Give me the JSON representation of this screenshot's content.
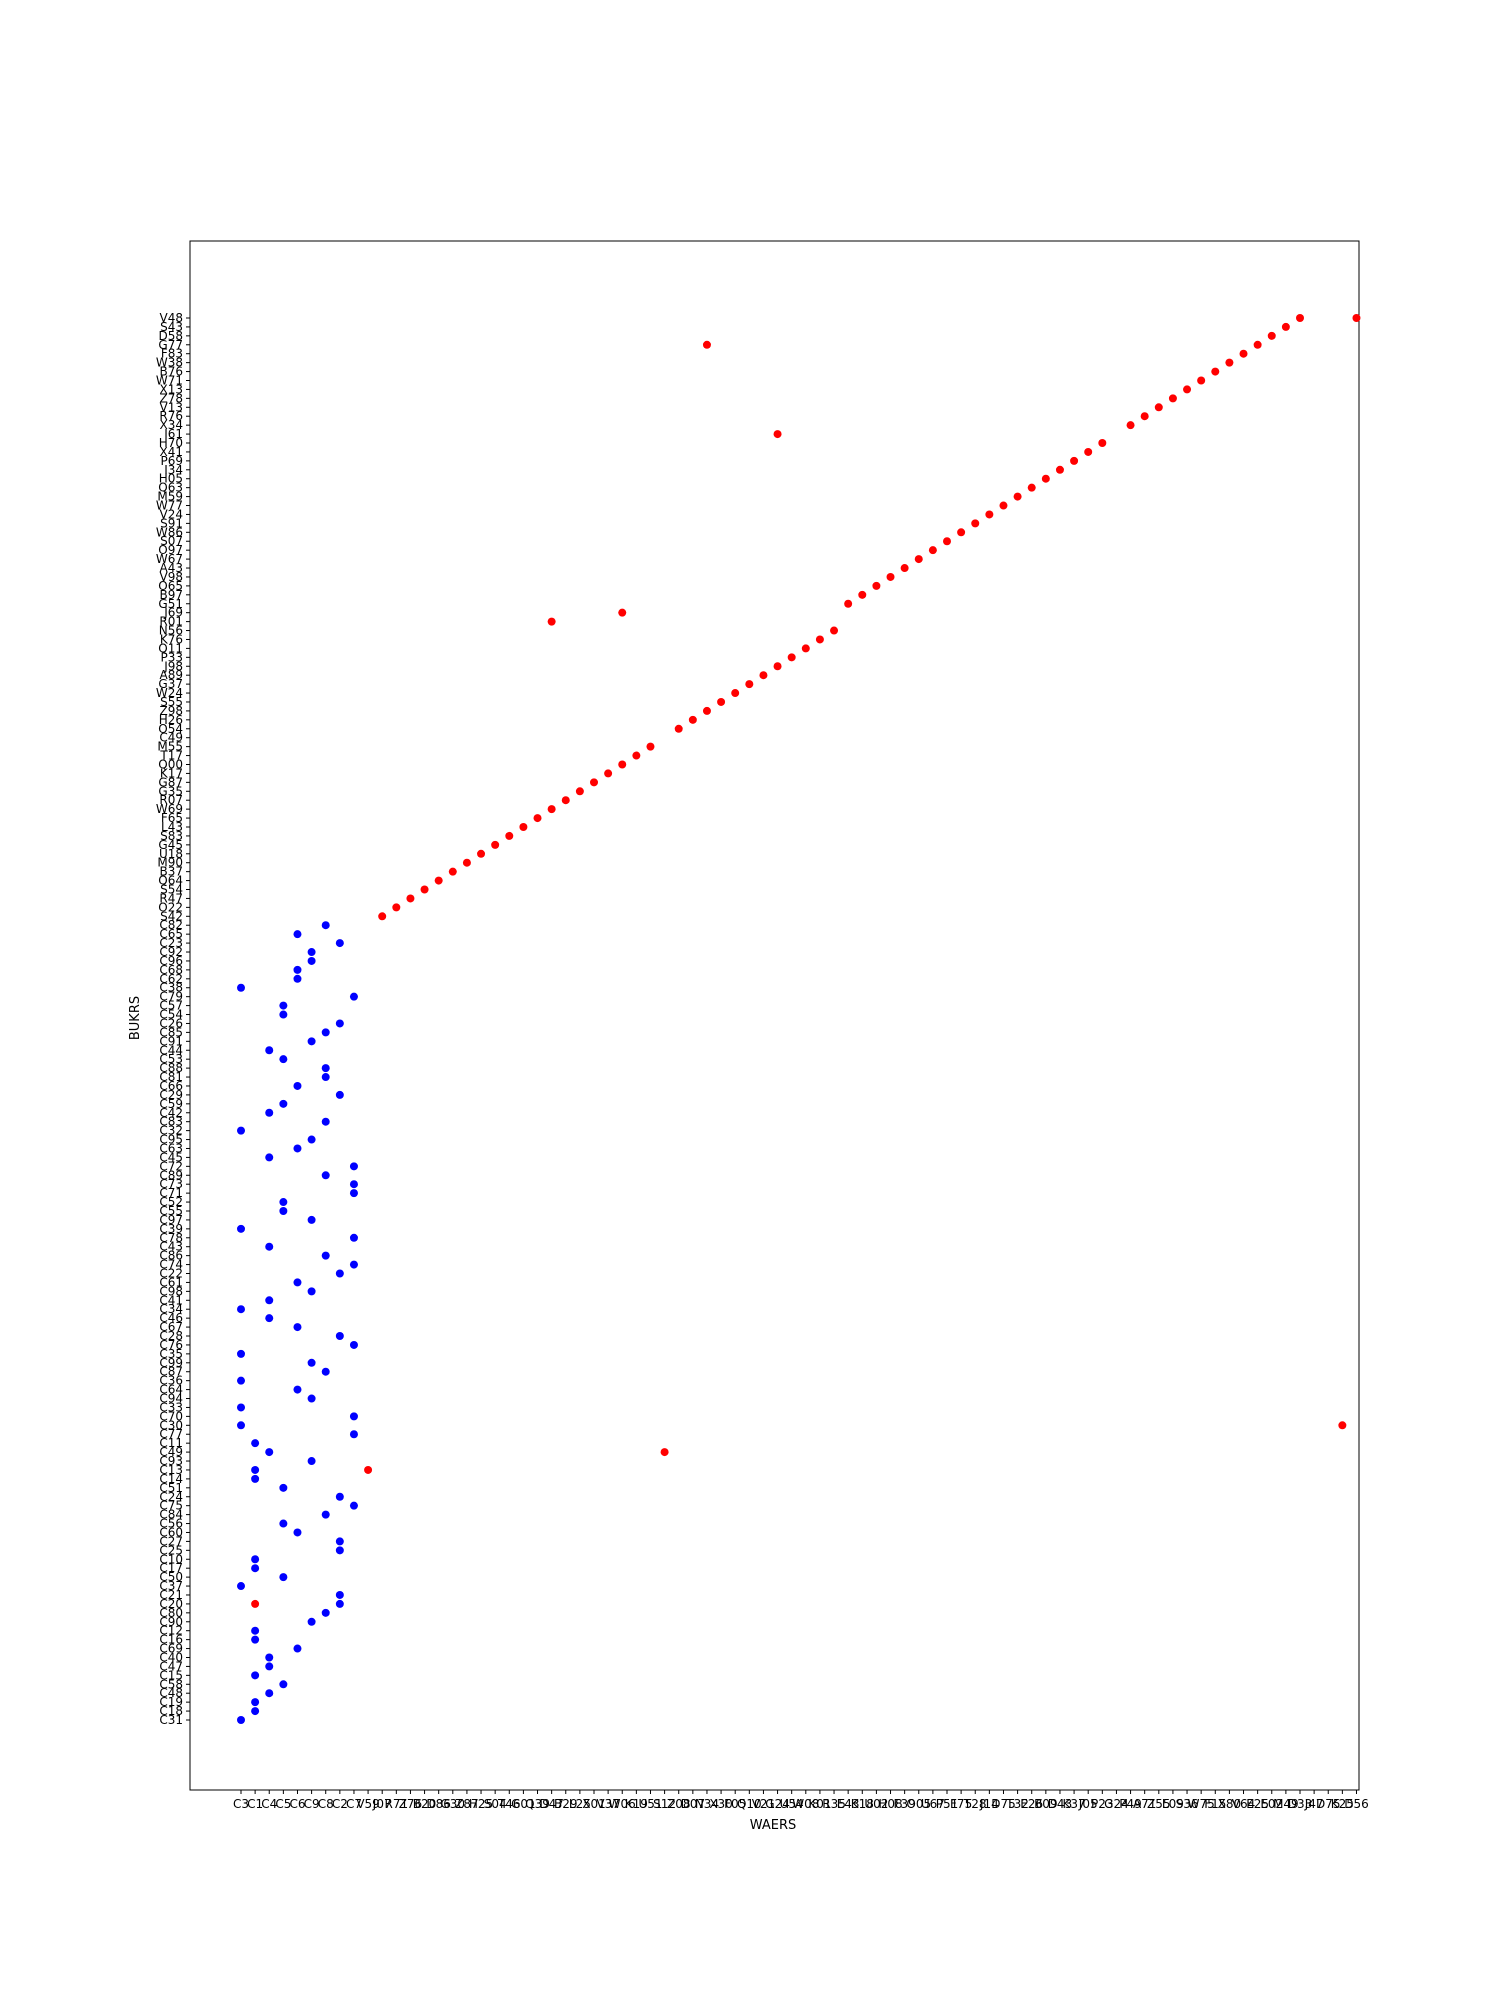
{
  "chart_data": {
    "type": "scatter",
    "title": "",
    "xlabel": "WAERS",
    "ylabel": "BUKRS",
    "grid": false,
    "legend": "none",
    "colors": {
      "blue": "#0000ff",
      "red": "#ff0000"
    },
    "x_categories": [
      "C3",
      "C1",
      "C4",
      "C5",
      "C6",
      "C9",
      "C8",
      "C2",
      "C7",
      "V59",
      "J07",
      "R71",
      "Z76",
      "B20",
      "D86",
      "G30",
      "Z87",
      "H25",
      "S04",
      "T46",
      "G01",
      "Q39",
      "D47",
      "B29",
      "L25",
      "X01",
      "V37",
      "W06",
      "K19",
      "U51",
      "S12",
      "Z08",
      "D07",
      "N34",
      "X30",
      "F05",
      "Q10",
      "V21",
      "G24",
      "U54",
      "W08",
      "K01",
      "R35",
      "E43",
      "K18",
      "U02",
      "H08",
      "F39",
      "O05",
      "U67",
      "P51",
      "F75",
      "T28",
      "J14",
      "D75",
      "T32",
      "E26",
      "B09",
      "D43",
      "K37",
      "J05",
      "P23",
      "G24",
      "P49",
      "A71",
      "Z55",
      "L09",
      "S36",
      "W75",
      "F15",
      "X80",
      "V64",
      "E25",
      "E02",
      "M49",
      "D33",
      "J47",
      "D75",
      "K25",
      "D56"
    ],
    "y_categories": [
      "C31",
      "C18",
      "C19",
      "C48",
      "C58",
      "C15",
      "C47",
      "C40",
      "C69",
      "C16",
      "C12",
      "C90",
      "C80",
      "C20",
      "C21",
      "C37",
      "C50",
      "C17",
      "C10",
      "C25",
      "C27",
      "C60",
      "C56",
      "C84",
      "C75",
      "C24",
      "C51",
      "C14",
      "C13",
      "C93",
      "C49",
      "C11",
      "C77",
      "C30",
      "C70",
      "C33",
      "C94",
      "C64",
      "C36",
      "C87",
      "C99",
      "C35",
      "C76",
      "C28",
      "C67",
      "C46",
      "C34",
      "C41",
      "C98",
      "C61",
      "C22",
      "C74",
      "C86",
      "C43",
      "C78",
      "C39",
      "C97",
      "C55",
      "C52",
      "C71",
      "C73",
      "C89",
      "C72",
      "C45",
      "C63",
      "C95",
      "C32",
      "C83",
      "C42",
      "C59",
      "C29",
      "C66",
      "C81",
      "C88",
      "C53",
      "C44",
      "C91",
      "C85",
      "C26",
      "C54",
      "C57",
      "C79",
      "C38",
      "C62",
      "C68",
      "C96",
      "C92",
      "C23",
      "C65",
      "C82",
      "S42",
      "O22",
      "R47",
      "S54",
      "Q64",
      "B37",
      "M90",
      "U18",
      "G45",
      "S83",
      "L43",
      "F65",
      "W69",
      "R07",
      "G35",
      "G87",
      "K17",
      "Q00",
      "T17",
      "M55",
      "C49",
      "O54",
      "H26",
      "Z98",
      "S55",
      "W24",
      "G37",
      "A89",
      "J98",
      "P33",
      "Q11",
      "K76",
      "N56",
      "R01",
      "J69",
      "G51",
      "B97",
      "O65",
      "V98",
      "A43",
      "W67",
      "O97",
      "S07",
      "W86",
      "S91",
      "V24",
      "W77",
      "M59",
      "Q63",
      "H05",
      "I34",
      "P69",
      "X41",
      "H70",
      "I61",
      "X34",
      "R76",
      "V13",
      "Z78",
      "X13",
      "W71",
      "B76",
      "W38",
      "F83",
      "G77",
      "D58",
      "S43",
      "V48"
    ],
    "series": [
      {
        "color": "blue",
        "points": [
          {
            "x": "C3",
            "y": "C31"
          },
          {
            "x": "C1",
            "y": "C18"
          },
          {
            "x": "C1",
            "y": "C19"
          },
          {
            "x": "C4",
            "y": "C48"
          },
          {
            "x": "C5",
            "y": "C58"
          },
          {
            "x": "C1",
            "y": "C15"
          },
          {
            "x": "C4",
            "y": "C47"
          },
          {
            "x": "C4",
            "y": "C40"
          },
          {
            "x": "C6",
            "y": "C69"
          },
          {
            "x": "C1",
            "y": "C16"
          },
          {
            "x": "C1",
            "y": "C12"
          },
          {
            "x": "C9",
            "y": "C90"
          },
          {
            "x": "C8",
            "y": "C80"
          },
          {
            "x": "C2",
            "y": "C21"
          },
          {
            "x": "C2",
            "y": "C20"
          },
          {
            "x": "C3",
            "y": "C37"
          },
          {
            "x": "C5",
            "y": "C50"
          },
          {
            "x": "C1",
            "y": "C17"
          },
          {
            "x": "C1",
            "y": "C10"
          },
          {
            "x": "C2",
            "y": "C25"
          },
          {
            "x": "C2",
            "y": "C27"
          },
          {
            "x": "C6",
            "y": "C60"
          },
          {
            "x": "C5",
            "y": "C56"
          },
          {
            "x": "C8",
            "y": "C84"
          },
          {
            "x": "C7",
            "y": "C75"
          },
          {
            "x": "C2",
            "y": "C24"
          },
          {
            "x": "C5",
            "y": "C51"
          },
          {
            "x": "C1",
            "y": "C14"
          },
          {
            "x": "C1",
            "y": "C13"
          },
          {
            "x": "C9",
            "y": "C93"
          },
          {
            "x": "C4",
            "y": "C49"
          },
          {
            "x": "C1",
            "y": "C11"
          },
          {
            "x": "C7",
            "y": "C77"
          },
          {
            "x": "C3",
            "y": "C30"
          },
          {
            "x": "C7",
            "y": "C70"
          },
          {
            "x": "C3",
            "y": "C33"
          },
          {
            "x": "C9",
            "y": "C94"
          },
          {
            "x": "C6",
            "y": "C64"
          },
          {
            "x": "C3",
            "y": "C36"
          },
          {
            "x": "C8",
            "y": "C87"
          },
          {
            "x": "C9",
            "y": "C99"
          },
          {
            "x": "C3",
            "y": "C35"
          },
          {
            "x": "C7",
            "y": "C76"
          },
          {
            "x": "C2",
            "y": "C28"
          },
          {
            "x": "C6",
            "y": "C67"
          },
          {
            "x": "C4",
            "y": "C46"
          },
          {
            "x": "C3",
            "y": "C34"
          },
          {
            "x": "C4",
            "y": "C41"
          },
          {
            "x": "C9",
            "y": "C98"
          },
          {
            "x": "C6",
            "y": "C61"
          },
          {
            "x": "C2",
            "y": "C22"
          },
          {
            "x": "C7",
            "y": "C74"
          },
          {
            "x": "C8",
            "y": "C86"
          },
          {
            "x": "C4",
            "y": "C43"
          },
          {
            "x": "C7",
            "y": "C78"
          },
          {
            "x": "C3",
            "y": "C39"
          },
          {
            "x": "C9",
            "y": "C97"
          },
          {
            "x": "C5",
            "y": "C55"
          },
          {
            "x": "C5",
            "y": "C52"
          },
          {
            "x": "C7",
            "y": "C71"
          },
          {
            "x": "C7",
            "y": "C73"
          },
          {
            "x": "C8",
            "y": "C89"
          },
          {
            "x": "C7",
            "y": "C72"
          },
          {
            "x": "C4",
            "y": "C45"
          },
          {
            "x": "C6",
            "y": "C63"
          },
          {
            "x": "C9",
            "y": "C95"
          },
          {
            "x": "C3",
            "y": "C32"
          },
          {
            "x": "C8",
            "y": "C83"
          },
          {
            "x": "C4",
            "y": "C42"
          },
          {
            "x": "C5",
            "y": "C59"
          },
          {
            "x": "C2",
            "y": "C29"
          },
          {
            "x": "C6",
            "y": "C66"
          },
          {
            "x": "C8",
            "y": "C81"
          },
          {
            "x": "C8",
            "y": "C88"
          },
          {
            "x": "C5",
            "y": "C53"
          },
          {
            "x": "C4",
            "y": "C44"
          },
          {
            "x": "C9",
            "y": "C91"
          },
          {
            "x": "C8",
            "y": "C85"
          },
          {
            "x": "C2",
            "y": "C26"
          },
          {
            "x": "C5",
            "y": "C54"
          },
          {
            "x": "C5",
            "y": "C57"
          },
          {
            "x": "C7",
            "y": "C79"
          },
          {
            "x": "C3",
            "y": "C38"
          },
          {
            "x": "C6",
            "y": "C62"
          },
          {
            "x": "C6",
            "y": "C68"
          },
          {
            "x": "C9",
            "y": "C96"
          },
          {
            "x": "C9",
            "y": "C92"
          },
          {
            "x": "C2",
            "y": "C23"
          },
          {
            "x": "C6",
            "y": "C65"
          },
          {
            "x": "C8",
            "y": "C82"
          }
        ]
      },
      {
        "color": "red",
        "points": [
          {
            "x": "C1",
            "y": "C20"
          },
          {
            "x": "V59",
            "y": "C13"
          },
          {
            "x": "K25",
            "y": "C30"
          },
          {
            "x": "J07",
            "y": "S42"
          },
          {
            "x": "R71",
            "y": "O22"
          },
          {
            "x": "Z76",
            "y": "R47"
          },
          {
            "x": "B20",
            "y": "S54"
          },
          {
            "x": "D86",
            "y": "Q64"
          },
          {
            "x": "G30",
            "y": "B37"
          },
          {
            "x": "Z87",
            "y": "M90"
          },
          {
            "x": "H25",
            "y": "U18"
          },
          {
            "x": "S04",
            "y": "G45"
          },
          {
            "x": "T46",
            "y": "S83"
          },
          {
            "x": "G01",
            "y": "L43"
          },
          {
            "x": "Q39",
            "y": "F65"
          },
          {
            "x": "D47",
            "y": "W69"
          },
          {
            "x": "B29",
            "y": "R07"
          },
          {
            "x": "L25",
            "y": "G35"
          },
          {
            "x": "X01",
            "y": "G87"
          },
          {
            "x": "V37",
            "y": "K17"
          },
          {
            "x": "W06",
            "y": "Q00"
          },
          {
            "x": "K19",
            "y": "T17"
          },
          {
            "x": "U51",
            "y": "M55"
          },
          {
            "x": "S12",
            "y": "C49"
          },
          {
            "x": "Z08",
            "y": "O54"
          },
          {
            "x": "D07",
            "y": "H26"
          },
          {
            "x": "N34",
            "y": "Z98"
          },
          {
            "x": "X30",
            "y": "S55"
          },
          {
            "x": "F05",
            "y": "W24"
          },
          {
            "x": "Q10",
            "y": "G37"
          },
          {
            "x": "V21",
            "y": "A89"
          },
          {
            "x": "G24",
            "y": "J98"
          },
          {
            "x": "U54",
            "y": "P33"
          },
          {
            "x": "W08",
            "y": "Q11"
          },
          {
            "x": "K01",
            "y": "K76"
          },
          {
            "x": "R35",
            "y": "N56"
          },
          {
            "x": "E43",
            "y": "G51"
          },
          {
            "x": "K18",
            "y": "B97"
          },
          {
            "x": "U02",
            "y": "O65"
          },
          {
            "x": "H08",
            "y": "V98"
          },
          {
            "x": "F39",
            "y": "A43"
          },
          {
            "x": "O05",
            "y": "W67"
          },
          {
            "x": "U67",
            "y": "O97"
          },
          {
            "x": "P51",
            "y": "S07"
          },
          {
            "x": "F75",
            "y": "W86"
          },
          {
            "x": "T28",
            "y": "S91"
          },
          {
            "x": "J14",
            "y": "V24"
          },
          {
            "x": "D75",
            "y": "W77"
          },
          {
            "x": "T32",
            "y": "M59"
          },
          {
            "x": "E26",
            "y": "Q63"
          },
          {
            "x": "B09",
            "y": "H05"
          },
          {
            "x": "D43",
            "y": "I34"
          },
          {
            "x": "K37",
            "y": "P69"
          },
          {
            "x": "J05",
            "y": "X41"
          },
          {
            "x": "P23",
            "y": "H70"
          },
          {
            "x": "G24",
            "y": "I61"
          },
          {
            "x": "P49",
            "y": "X34"
          },
          {
            "x": "A71",
            "y": "R76"
          },
          {
            "x": "Z55",
            "y": "V13"
          },
          {
            "x": "L09",
            "y": "Z78"
          },
          {
            "x": "S36",
            "y": "X13"
          },
          {
            "x": "W75",
            "y": "W71"
          },
          {
            "x": "F15",
            "y": "B76"
          },
          {
            "x": "X80",
            "y": "W38"
          },
          {
            "x": "V64",
            "y": "F83"
          },
          {
            "x": "E25",
            "y": "G77"
          },
          {
            "x": "E02",
            "y": "D58"
          },
          {
            "x": "M49",
            "y": "S43"
          },
          {
            "x": "D33",
            "y": "V48"
          },
          {
            "x": "D47",
            "y": "R01"
          },
          {
            "x": "W06",
            "y": "J69"
          },
          {
            "x": "N34",
            "y": "G77"
          },
          {
            "x": "D56",
            "y": "V48"
          }
        ]
      }
    ]
  }
}
